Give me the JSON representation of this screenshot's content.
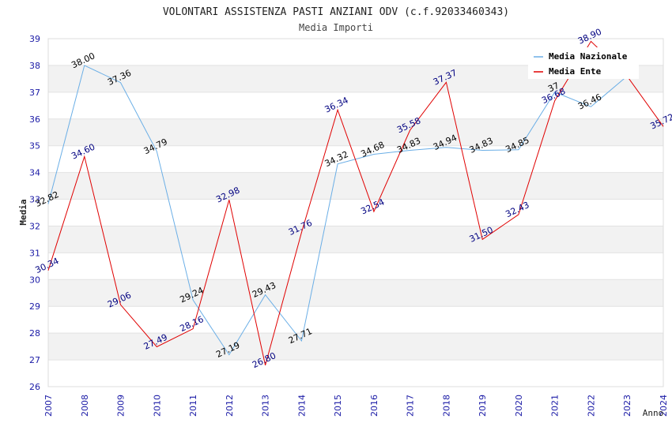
{
  "chart_data": {
    "type": "line",
    "title": "VOLONTARI ASSISTENZA PASTI ANZIANI ODV (c.f.92033460343)",
    "subtitle": "Media Importi",
    "xlabel": "Anno",
    "ylabel": "Media",
    "ylim": [
      26,
      39
    ],
    "x": [
      "2007",
      "2008",
      "2009",
      "2010",
      "2011",
      "2012",
      "2013",
      "2014",
      "2015",
      "2016",
      "2017",
      "2018",
      "2019",
      "2020",
      "2021",
      "2022",
      "2023",
      "2024"
    ],
    "y_ticks": [
      "26",
      "27",
      "28",
      "29",
      "30",
      "31",
      "32",
      "33",
      "34",
      "35",
      "36",
      "37",
      "38",
      "39"
    ],
    "legend_position": "top-right",
    "series": [
      {
        "name": "Media Nazionale",
        "color": "#6aaee6",
        "label_color": "#000000",
        "values": [
          32.82,
          38.0,
          37.36,
          34.79,
          29.24,
          27.19,
          29.43,
          27.71,
          34.32,
          34.68,
          34.83,
          34.94,
          34.83,
          34.85,
          37.0,
          36.46,
          37.6,
          null
        ],
        "labels": [
          "32.82",
          "38.00",
          "37.36",
          "34.79",
          "29.24",
          "27.19",
          "29.43",
          "27.71",
          "34.32",
          "34.68",
          "34.83",
          "34.94",
          "34.83",
          "34.85",
          "37",
          "36.46",
          "",
          ""
        ]
      },
      {
        "name": "Media Ente",
        "color": "#e00000",
        "label_color": "#000080",
        "values": [
          30.34,
          34.6,
          29.06,
          27.49,
          28.16,
          32.98,
          26.8,
          31.76,
          36.34,
          32.54,
          35.58,
          37.37,
          31.5,
          32.43,
          36.68,
          38.9,
          37.6,
          35.72
        ],
        "labels": [
          "30.34",
          "34.60",
          "29.06",
          "27.49",
          "28.16",
          "32.98",
          "26.80",
          "31.76",
          "36.34",
          "32.54",
          "35.58",
          "37.37",
          "31.50",
          "32.43",
          "36.68",
          "38.90",
          "",
          "35.72"
        ]
      }
    ]
  }
}
